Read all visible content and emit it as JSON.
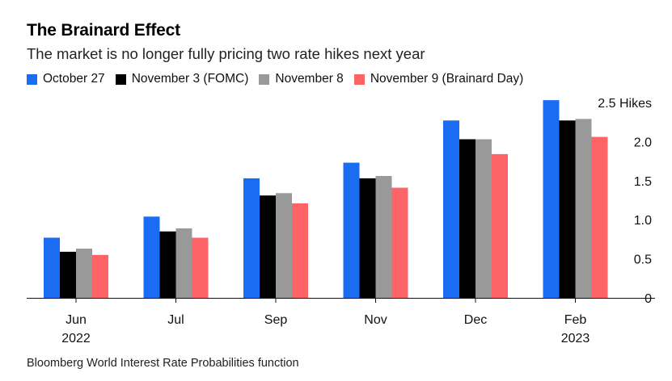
{
  "title": "The Brainard Effect",
  "subtitle": "The market is no longer fully pricing two rate hikes next year",
  "source": "Bloomberg World Interest Rate Probabilities function",
  "chart_data": {
    "type": "bar",
    "categories": [
      "Jun",
      "Jul",
      "Sep",
      "Nov",
      "Dec",
      "Feb"
    ],
    "category_sublabels": [
      "2022",
      "",
      "",
      "",
      "",
      "2023"
    ],
    "series": [
      {
        "name": "October 27",
        "color": "#1a6cf2",
        "values": [
          0.77,
          1.04,
          1.53,
          1.73,
          2.27,
          2.53
        ]
      },
      {
        "name": "November 3 (FOMC)",
        "color": "#000000",
        "values": [
          0.59,
          0.85,
          1.31,
          1.53,
          2.03,
          2.27
        ]
      },
      {
        "name": "November 8",
        "color": "#999999",
        "values": [
          0.63,
          0.89,
          1.34,
          1.56,
          2.03,
          2.29
        ]
      },
      {
        "name": "November 9 (Brainard Day)",
        "color": "#fd6467",
        "values": [
          0.55,
          0.77,
          1.21,
          1.41,
          1.84,
          2.06
        ]
      }
    ],
    "ylim": [
      0,
      2.5
    ],
    "yticks": [
      "0",
      "0.5",
      "1.0",
      "1.5",
      "2.0",
      "2.5 Hikes"
    ],
    "ytick_values": [
      0,
      0.5,
      1.0,
      1.5,
      2.0,
      2.5
    ],
    "ylabel": "",
    "xlabel": "",
    "grid": false,
    "legend_position": "top-left"
  }
}
